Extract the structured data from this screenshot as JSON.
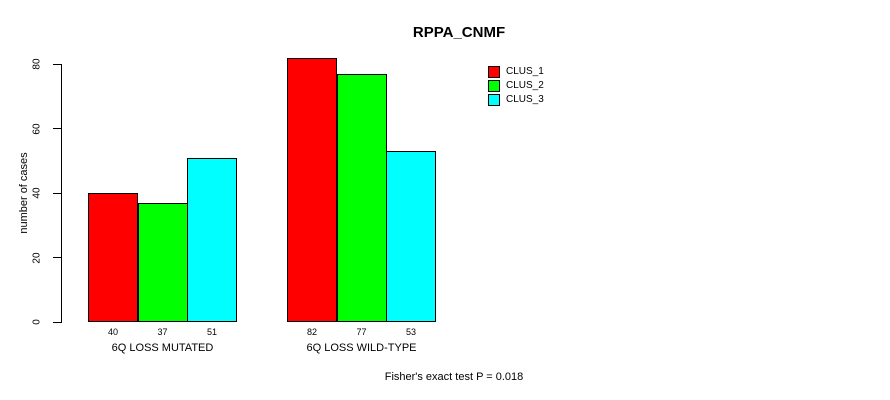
{
  "title": "RPPA_CNMF",
  "footer": "Fisher's exact test P = 0.018",
  "chart_data": {
    "type": "bar",
    "title": "RPPA_CNMF",
    "xlabel": "",
    "ylabel": "number of cases",
    "categories": [
      "6Q LOSS MUTATED",
      "6Q LOSS WILD-TYPE"
    ],
    "series": [
      {
        "name": "CLUS_1",
        "color": "#FF0000",
        "values": [
          40,
          82
        ]
      },
      {
        "name": "CLUS_2",
        "color": "#00FF00",
        "values": [
          37,
          77
        ]
      },
      {
        "name": "CLUS_3",
        "color": "#00FFFF",
        "values": [
          51,
          53
        ]
      }
    ],
    "bar_value_labels": [
      [
        40,
        37,
        51
      ],
      [
        82,
        77,
        53
      ]
    ],
    "yticks": [
      0,
      20,
      40,
      60,
      80
    ],
    "ylim": [
      0,
      80
    ],
    "grid": false,
    "legend_position": "top-right",
    "legend_entries": [
      "CLUS_1",
      "CLUS_2",
      "CLUS_3"
    ],
    "annotation": "Fisher's exact test P = 0.018"
  }
}
